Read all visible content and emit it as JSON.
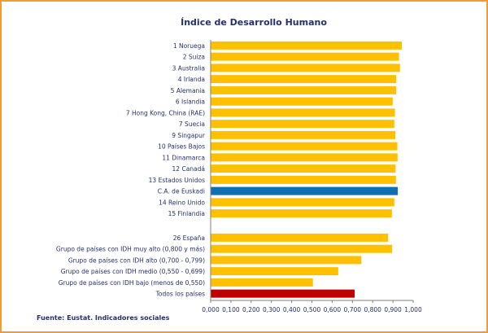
{
  "source_note": "Fuente: Eustat. Indicadores sociales",
  "colors": {
    "frame": "#f39c35",
    "bar_default": "#ffc000",
    "bar_euskadi": "#0f6fb3",
    "bar_total": "#c00000",
    "text": "#23306b"
  },
  "chart_data": {
    "type": "bar",
    "orientation": "horizontal",
    "title": "Índice de Desarrollo Humano",
    "xlabel": "",
    "ylabel": "",
    "xlim": [
      0,
      1
    ],
    "xticks": [
      "0,000",
      "0,100",
      "0,200",
      "0,300",
      "0,400",
      "0,500",
      "0,600",
      "0,700",
      "0,800",
      "0,900",
      "1,000"
    ],
    "grid": false,
    "legend": "none",
    "groups": [
      {
        "categories": [
          "1 Noruega",
          "2 Suiza",
          "3 Australia",
          "4 Irlanda",
          "5 Alemania",
          "6 Islandia",
          "7 Hong Kong, China (RAE)",
          "7 Suecia",
          "9 Singapur",
          "10 Países Bajos",
          "11 Dinamarca",
          "12 Canadá",
          "13 Estados Unidos",
          "C.A. de Euskadi",
          "14 Reino Unido",
          "15 Finlandia"
        ],
        "values": [
          0.944,
          0.93,
          0.935,
          0.916,
          0.916,
          0.899,
          0.91,
          0.907,
          0.912,
          0.922,
          0.923,
          0.913,
          0.915,
          0.924,
          0.907,
          0.895
        ],
        "colors": [
          "#ffc000",
          "#ffc000",
          "#ffc000",
          "#ffc000",
          "#ffc000",
          "#ffc000",
          "#ffc000",
          "#ffc000",
          "#ffc000",
          "#ffc000",
          "#ffc000",
          "#ffc000",
          "#ffc000",
          "#0f6fb3",
          "#ffc000",
          "#ffc000"
        ]
      },
      {
        "categories": [
          "26 España",
          "Grupo de países con IDH muy alto (0,800 y más)",
          "Grupo de países con IDH  alto (0,700 - 0,799)",
          "Grupo de países con IDH medio (0,550 - 0,699)",
          "Grupo de países con IDH bajo (menos de 0,550)",
          "Todos los países"
        ],
        "values": [
          0.876,
          0.896,
          0.744,
          0.63,
          0.505,
          0.711
        ],
        "colors": [
          "#ffc000",
          "#ffc000",
          "#ffc000",
          "#ffc000",
          "#ffc000",
          "#c00000"
        ]
      }
    ]
  }
}
